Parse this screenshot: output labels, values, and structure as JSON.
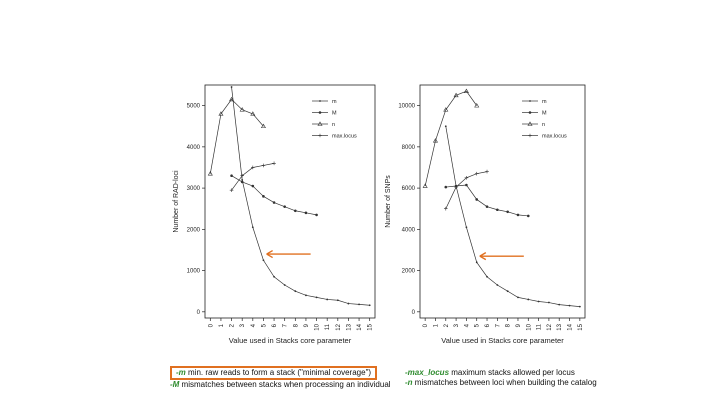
{
  "chart_data": [
    {
      "type": "line",
      "ylabel": "Number of RAD-loci",
      "xlabel": "Value used in Stacks core parameter",
      "x_ticks": [
        "0",
        "1",
        "2",
        "3",
        "4",
        "5",
        "6",
        "7",
        "8",
        "9",
        "10",
        "11",
        "12",
        "13",
        "14",
        "15"
      ],
      "y_ticks": [
        "0",
        "1000",
        "2000",
        "3000",
        "4000",
        "5000"
      ],
      "ylim": [
        -150,
        5500
      ],
      "legend": [
        "m",
        "M",
        "n",
        "max.locus"
      ],
      "series": [
        {
          "name": "m",
          "x": [
            2,
            3,
            4,
            5,
            6,
            7,
            8,
            9,
            10,
            11,
            12,
            13,
            14,
            15
          ],
          "values": [
            5450,
            3200,
            2050,
            1250,
            850,
            650,
            500,
            400,
            350,
            300,
            280,
            200,
            180,
            160
          ]
        },
        {
          "name": "M",
          "x": [
            2,
            3,
            4,
            5,
            6,
            7,
            8,
            9,
            10
          ],
          "values": [
            3300,
            3150,
            3050,
            2800,
            2650,
            2550,
            2450,
            2400,
            2350
          ]
        },
        {
          "name": "n",
          "x": [
            0,
            1,
            2,
            3,
            4,
            5
          ],
          "values": [
            3350,
            4800,
            5150,
            4900,
            4800,
            4500
          ]
        },
        {
          "name": "max.locus",
          "x": [
            2,
            3,
            4,
            5,
            6
          ],
          "values": [
            2950,
            3300,
            3500,
            3550,
            3600
          ]
        }
      ],
      "arrow_at": {
        "x": 5.3,
        "y": 1400
      }
    },
    {
      "type": "line",
      "ylabel": "Number of SNPs",
      "xlabel": "Value used in Stacks core parameter",
      "x_ticks": [
        "0",
        "1",
        "2",
        "3",
        "4",
        "5",
        "6",
        "7",
        "8",
        "9",
        "10",
        "11",
        "12",
        "13",
        "14",
        "15"
      ],
      "y_ticks": [
        "0",
        "2000",
        "4000",
        "6000",
        "8000",
        "10000"
      ],
      "ylim": [
        -300,
        11000
      ],
      "legend": [
        "m",
        "M",
        "n",
        "max.locus"
      ],
      "series": [
        {
          "name": "m",
          "x": [
            2,
            3,
            4,
            5,
            6,
            7,
            8,
            9,
            10,
            11,
            12,
            13,
            14,
            15
          ],
          "values": [
            9000,
            6100,
            4100,
            2400,
            1700,
            1300,
            1000,
            700,
            600,
            500,
            450,
            350,
            300,
            250
          ]
        },
        {
          "name": "M",
          "x": [
            2,
            3,
            4,
            5,
            6,
            7,
            8,
            9,
            10
          ],
          "values": [
            6050,
            6100,
            6150,
            5450,
            5100,
            4950,
            4850,
            4700,
            4650
          ]
        },
        {
          "name": "n",
          "x": [
            0,
            1,
            2,
            3,
            4,
            5
          ],
          "values": [
            6100,
            8300,
            9800,
            10500,
            10700,
            10000
          ]
        },
        {
          "name": "max.locus",
          "x": [
            2,
            3,
            4,
            5,
            6
          ],
          "values": [
            5000,
            6050,
            6500,
            6700,
            6800
          ]
        }
      ],
      "arrow_at": {
        "x": 5.3,
        "y": 2700
      }
    }
  ],
  "notes": {
    "m_flag": "-m",
    "m_text": " min. raw reads to form a stack  (\"minimal coverage\")",
    "M_flag": "-M",
    "M_text": " mismatches between stacks when processing an individual",
    "maxlocus_flag": "-max_locus",
    "maxlocus_text": "  maximum stacks allowed per locus",
    "n_flag": "-n",
    "n_text": " mismatches between loci when building the catalog"
  },
  "colors": {
    "arrow": "#e07020",
    "highlight_box": "#e07020",
    "flag_text": "#2e8b2e",
    "series": "#333333"
  }
}
